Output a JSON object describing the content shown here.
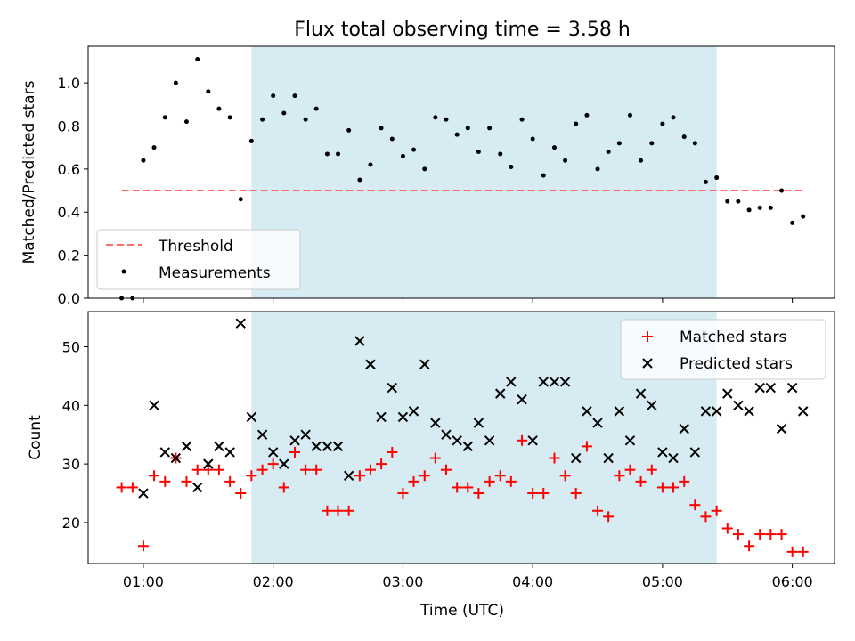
{
  "chart_data": [
    {
      "type": "scatter",
      "title": "Flux total observing time = 3.58 h",
      "ylabel": "Matched/Predicted stars",
      "xlabel": "",
      "xlim": [
        0.575,
        6.325
      ],
      "ylim": [
        0.0,
        1.17
      ],
      "yticks": [
        0.0,
        0.2,
        0.4,
        0.6,
        0.8,
        1.0
      ],
      "ytick_labels": [
        "0.0",
        "0.2",
        "0.4",
        "0.6",
        "0.8",
        "1.0"
      ],
      "grid": false,
      "legend_position": "lower-left",
      "shaded_span": {
        "start": 1.833,
        "end": 5.417,
        "color": "#add8e6"
      },
      "threshold": {
        "name": "Threshold",
        "value": 0.5,
        "x_start": 0.833,
        "x_end": 6.083,
        "color": "#ff6b6b"
      },
      "series": [
        {
          "name": "Measurements",
          "marker": "dot",
          "color": "#000000",
          "x": [
            0.833,
            0.917,
            1.0,
            1.083,
            1.167,
            1.25,
            1.333,
            1.417,
            1.5,
            1.583,
            1.667,
            1.75,
            1.833,
            1.917,
            2.0,
            2.083,
            2.167,
            2.25,
            2.333,
            2.417,
            2.5,
            2.583,
            2.667,
            2.75,
            2.833,
            2.917,
            3.0,
            3.083,
            3.167,
            3.25,
            3.333,
            3.417,
            3.5,
            3.583,
            3.667,
            3.75,
            3.833,
            3.917,
            4.0,
            4.083,
            4.167,
            4.25,
            4.333,
            4.417,
            4.5,
            4.583,
            4.667,
            4.75,
            4.833,
            4.917,
            5.0,
            5.083,
            5.167,
            5.25,
            5.333,
            5.417,
            5.5,
            5.583,
            5.667,
            5.75,
            5.833,
            5.917,
            6.0,
            6.083
          ],
          "y": [
            0.0,
            0.0,
            0.64,
            0.7,
            0.84,
            1.0,
            0.82,
            1.11,
            0.96,
            0.88,
            0.84,
            0.46,
            0.73,
            0.83,
            0.94,
            0.86,
            0.94,
            0.83,
            0.88,
            0.67,
            0.67,
            0.78,
            0.55,
            0.62,
            0.79,
            0.74,
            0.66,
            0.69,
            0.6,
            0.84,
            0.83,
            0.76,
            0.79,
            0.68,
            0.79,
            0.67,
            0.61,
            0.83,
            0.74,
            0.57,
            0.7,
            0.64,
            0.81,
            0.85,
            0.6,
            0.68,
            0.72,
            0.85,
            0.64,
            0.72,
            0.81,
            0.84,
            0.75,
            0.72,
            0.54,
            0.56,
            0.45,
            0.45,
            0.41,
            0.42,
            0.42,
            0.5,
            0.35,
            0.38
          ]
        }
      ]
    },
    {
      "type": "scatter",
      "title": "",
      "xlabel": "Time (UTC)",
      "ylabel": "Count",
      "xlim": [
        0.575,
        6.325
      ],
      "ylim": [
        13,
        56
      ],
      "xticks": [
        1,
        2,
        3,
        4,
        5,
        6
      ],
      "xtick_labels": [
        "01:00",
        "02:00",
        "03:00",
        "04:00",
        "05:00",
        "06:00"
      ],
      "yticks": [
        20,
        30,
        40,
        50
      ],
      "ytick_labels": [
        "20",
        "30",
        "40",
        "50"
      ],
      "grid": false,
      "legend_position": "upper-right",
      "shaded_span": {
        "start": 1.833,
        "end": 5.417,
        "color": "#add8e6"
      },
      "x": [
        0.833,
        0.917,
        1.0,
        1.083,
        1.167,
        1.25,
        1.333,
        1.417,
        1.5,
        1.583,
        1.667,
        1.75,
        1.833,
        1.917,
        2.0,
        2.083,
        2.167,
        2.25,
        2.333,
        2.417,
        2.5,
        2.583,
        2.667,
        2.75,
        2.833,
        2.917,
        3.0,
        3.083,
        3.167,
        3.25,
        3.333,
        3.417,
        3.5,
        3.583,
        3.667,
        3.75,
        3.833,
        3.917,
        4.0,
        4.083,
        4.167,
        4.25,
        4.333,
        4.417,
        4.5,
        4.583,
        4.667,
        4.75,
        4.833,
        4.917,
        5.0,
        5.083,
        5.167,
        5.25,
        5.333,
        5.417,
        5.5,
        5.583,
        5.667,
        5.75,
        5.833,
        5.917,
        6.0,
        6.083
      ],
      "series": [
        {
          "name": "Matched stars",
          "marker": "plus",
          "color": "#ff0000",
          "values": [
            26,
            26,
            16,
            28,
            27,
            31,
            27,
            29,
            29,
            29,
            27,
            25,
            28,
            29,
            30,
            26,
            32,
            29,
            29,
            22,
            22,
            22,
            28,
            29,
            30,
            32,
            25,
            27,
            28,
            31,
            29,
            26,
            26,
            25,
            27,
            28,
            27,
            34,
            25,
            25,
            31,
            28,
            25,
            33,
            22,
            21,
            28,
            29,
            27,
            29,
            26,
            26,
            27,
            23,
            21,
            22,
            19,
            18,
            16,
            18,
            18,
            18,
            15,
            15
          ]
        },
        {
          "name": "Predicted stars",
          "marker": "x",
          "color": "#000000",
          "values": [
            null,
            null,
            25,
            40,
            32,
            31,
            33,
            26,
            30,
            33,
            32,
            54,
            38,
            35,
            32,
            30,
            34,
            35,
            33,
            33,
            33,
            28,
            51,
            47,
            38,
            43,
            38,
            39,
            47,
            37,
            35,
            34,
            33,
            37,
            34,
            42,
            44,
            41,
            34,
            44,
            44,
            44,
            31,
            39,
            37,
            31,
            39,
            34,
            42,
            40,
            32,
            31,
            36,
            32,
            39,
            39,
            42,
            40,
            39,
            43,
            43,
            36,
            43,
            39
          ]
        }
      ]
    }
  ]
}
